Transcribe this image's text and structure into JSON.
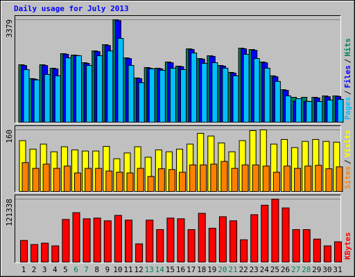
{
  "legend_separator": "/",
  "chart_data": [
    {
      "type": "bar",
      "title": "Daily usage for July 2013",
      "ylim": [
        0,
        3379
      ],
      "yticks": [
        3379
      ],
      "series": [
        {
          "name": "Hits",
          "color": "#00805c",
          "values": [
            1895,
            1438,
            1895,
            1781,
            2260,
            2215,
            1963,
            2352,
            2557,
            3379,
            2123,
            1461,
            1804,
            1781,
            1986,
            1849,
            2420,
            2100,
            2192,
            1872,
            1644,
            2443,
            2397,
            1986,
            1530,
            1073,
            822,
            822,
            822,
            868,
            868
          ]
        },
        {
          "name": "Files",
          "color": "#0000ff",
          "values": [
            1870,
            1420,
            1870,
            1760,
            2240,
            2200,
            1940,
            2330,
            2530,
            3350,
            2100,
            1440,
            1780,
            1760,
            1960,
            1830,
            2400,
            2080,
            2170,
            1850,
            1620,
            2420,
            2370,
            1960,
            1500,
            1050,
            700,
            690,
            800,
            840,
            850
          ]
        },
        {
          "name": "Pages",
          "color": "#00c0ff",
          "values": [
            1735,
            1393,
            1575,
            1530,
            2123,
            2192,
            1872,
            2192,
            2352,
            2763,
            1872,
            1301,
            1758,
            1712,
            1781,
            1735,
            2283,
            1941,
            1963,
            1781,
            1530,
            2237,
            2100,
            1781,
            1347,
            868,
            776,
            685,
            685,
            731,
            753
          ]
        }
      ]
    },
    {
      "type": "bar",
      "ylim": [
        0,
        160
      ],
      "yticks": [
        160
      ],
      "series": [
        {
          "name": "Visits",
          "color": "#ffff00",
          "values": [
            132,
            110,
            123,
            103,
            116,
            108,
            105,
            105,
            117,
            85,
            100,
            116,
            89,
            108,
            103,
            110,
            123,
            151,
            144,
            126,
            103,
            132,
            158,
            160,
            123,
            135,
            114,
            130,
            135,
            130,
            128
          ]
        },
        {
          "name": "Sites",
          "color": "#ff8000",
          "values": [
            75,
            60,
            71,
            60,
            66,
            48,
            60,
            60,
            53,
            50,
            48,
            60,
            39,
            59,
            57,
            50,
            69,
            69,
            71,
            78,
            60,
            69,
            69,
            66,
            50,
            66,
            60,
            66,
            68,
            59,
            64
          ]
        }
      ]
    },
    {
      "type": "bar",
      "ylim": [
        0,
        121338
      ],
      "yticks": [
        121338
      ],
      "categories": [
        "1",
        "2",
        "3",
        "4",
        "5",
        "6",
        "7",
        "8",
        "9",
        "10",
        "11",
        "12",
        "13",
        "14",
        "15",
        "16",
        "17",
        "18",
        "19",
        "20",
        "21",
        "22",
        "23",
        "24",
        "25",
        "26",
        "27",
        "28",
        "29",
        "30",
        "31"
      ],
      "category_colors": [
        "#000000",
        "#000000",
        "#000000",
        "#000000",
        "#000000",
        "#00805c",
        "#00805c",
        "#000000",
        "#000000",
        "#000000",
        "#000000",
        "#000000",
        "#00805c",
        "#00805c",
        "#000000",
        "#000000",
        "#000000",
        "#000000",
        "#000000",
        "#00805c",
        "#00805c",
        "#000000",
        "#000000",
        "#000000",
        "#000000",
        "#000000",
        "#00805c",
        "#00805c",
        "#000000",
        "#000000",
        "#000000"
      ],
      "series": [
        {
          "name": "KBytes",
          "color": "#ff0000",
          "values": [
            41750,
            33922,
            36532,
            31313,
            82196,
            95243,
            83501,
            84806,
            79587,
            90024,
            80891,
            35227,
            80891,
            62626,
            84806,
            83501,
            62626,
            93938,
            65235,
            87415,
            79587,
            43055,
            91329,
            109595,
            121338,
            104376,
            62626,
            62626,
            44360,
            31313,
            39141
          ]
        }
      ]
    }
  ]
}
